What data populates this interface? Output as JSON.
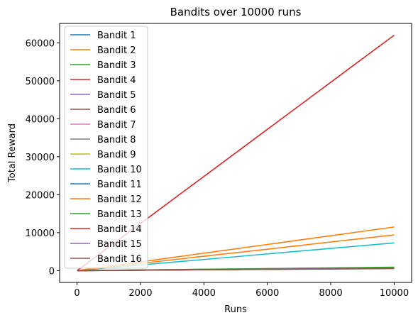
{
  "chart_data": {
    "type": "line",
    "title": "Bandits over 10000 runs",
    "xlabel": "Runs",
    "ylabel": "Total Reward",
    "xlim": [
      -550,
      10550
    ],
    "ylim": [
      -3100,
      65100
    ],
    "xticks": [
      0,
      2000,
      4000,
      6000,
      8000,
      10000
    ],
    "yticks": [
      0,
      10000,
      20000,
      30000,
      40000,
      50000,
      60000
    ],
    "grid": false,
    "legend_position": "top-left",
    "series": [
      {
        "name": "Bandit 1",
        "color": "#1f77b4",
        "x": [
          0,
          10000
        ],
        "y": [
          0,
          700
        ]
      },
      {
        "name": "Bandit 2",
        "color": "#ff7f0e",
        "x": [
          0,
          2000,
          4000,
          6000,
          8000,
          10000
        ],
        "y": [
          0,
          2300,
          4600,
          6900,
          9200,
          11500
        ]
      },
      {
        "name": "Bandit 3",
        "color": "#2ca02c",
        "x": [
          0,
          10000
        ],
        "y": [
          0,
          900
        ]
      },
      {
        "name": "Bandit 4",
        "color": "#d62728",
        "x": [
          0,
          2000,
          4000,
          6000,
          8000,
          10000
        ],
        "y": [
          0,
          12400,
          24800,
          37200,
          49600,
          62000
        ]
      },
      {
        "name": "Bandit 5",
        "color": "#9467bd",
        "x": [
          0,
          10000
        ],
        "y": [
          0,
          650
        ]
      },
      {
        "name": "Bandit 6",
        "color": "#8c564b",
        "x": [
          0,
          10000
        ],
        "y": [
          0,
          600
        ]
      },
      {
        "name": "Bandit 7",
        "color": "#e377c2",
        "x": [
          0,
          10000
        ],
        "y": [
          0,
          700
        ]
      },
      {
        "name": "Bandit 8",
        "color": "#7f7f7f",
        "x": [
          0,
          10000
        ],
        "y": [
          0,
          750
        ]
      },
      {
        "name": "Bandit 9",
        "color": "#bcbd22",
        "x": [
          0,
          10000
        ],
        "y": [
          0,
          800
        ]
      },
      {
        "name": "Bandit 10",
        "color": "#17becf",
        "x": [
          0,
          2000,
          4000,
          6000,
          8000,
          10000
        ],
        "y": [
          0,
          1500,
          2950,
          4400,
          5850,
          7300
        ]
      },
      {
        "name": "Bandit 11",
        "color": "#1f77b4",
        "x": [
          0,
          10000
        ],
        "y": [
          0,
          650
        ]
      },
      {
        "name": "Bandit 12",
        "color": "#ff7f0e",
        "x": [
          0,
          2000,
          4000,
          6000,
          8000,
          10000
        ],
        "y": [
          0,
          1900,
          3800,
          5650,
          7550,
          9400
        ]
      },
      {
        "name": "Bandit 13",
        "color": "#2ca02c",
        "x": [
          0,
          10000
        ],
        "y": [
          0,
          850
        ]
      },
      {
        "name": "Bandit 14",
        "color": "#d62728",
        "x": [
          0,
          10000
        ],
        "y": [
          0,
          600
        ]
      },
      {
        "name": "Bandit 15",
        "color": "#9467bd",
        "x": [
          0,
          10000
        ],
        "y": [
          0,
          650
        ]
      },
      {
        "name": "Bandit 16",
        "color": "#8c564b",
        "x": [
          0,
          10000
        ],
        "y": [
          0,
          550
        ]
      }
    ]
  }
}
